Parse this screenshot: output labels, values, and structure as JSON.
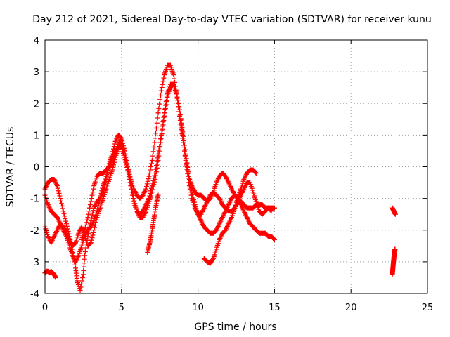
{
  "chart_data": {
    "type": "scatter",
    "title": "Day 212 of 2021, Sidereal Day-to-day VTEC variation (SDTVAR) for receiver kunu",
    "xlabel": "GPS time / hours",
    "ylabel": "SDTVAR / TECUs",
    "xlim": [
      0,
      25
    ],
    "ylim": [
      -4,
      4
    ],
    "xticks": [
      "0",
      "5",
      "10",
      "15",
      "20",
      "25"
    ],
    "yticks": [
      "-4",
      "-3",
      "-2",
      "-1",
      "0",
      "1",
      "2",
      "3",
      "4"
    ],
    "grid": true,
    "marker": "plus",
    "color": "#ff0000",
    "series": [
      {
        "x": [
          0.0,
          0.2,
          0.4,
          0.6,
          0.8,
          1.0,
          1.2,
          1.4,
          1.6,
          1.8,
          2.0,
          2.1,
          2.3,
          2.5,
          2.6,
          2.8,
          3.0,
          3.2,
          3.4,
          3.6,
          3.8,
          4.0,
          4.2,
          4.4,
          4.6,
          4.8,
          5.0,
          5.2,
          5.4,
          5.6,
          5.8,
          6.0,
          6.2,
          6.4,
          6.6,
          6.8,
          7.0,
          7.2,
          7.4,
          7.6,
          7.8,
          8.0,
          8.2,
          8.4,
          8.6,
          8.8,
          9.0,
          9.2,
          9.4,
          9.6,
          9.8,
          10.0,
          10.2,
          10.4,
          10.6,
          10.8,
          11.0,
          11.2,
          11.4,
          11.6,
          11.8,
          12.0,
          12.2,
          12.4,
          12.6,
          12.8,
          13.0,
          13.2,
          13.4,
          13.6,
          13.8,
          14.0,
          14.2,
          14.4,
          14.6,
          14.8,
          15.0
        ],
        "y": [
          -0.7,
          -0.5,
          -0.4,
          -0.4,
          -0.6,
          -1.0,
          -1.4,
          -1.8,
          -2.2,
          -2.7,
          -3.2,
          -3.6,
          -3.9,
          -3.4,
          -2.8,
          -2.2,
          -1.7,
          -1.3,
          -1.1,
          -1.0,
          -0.8,
          -0.4,
          0.1,
          0.4,
          0.8,
          1.0,
          0.9,
          0.5,
          0.0,
          -0.4,
          -0.7,
          -0.9,
          -1.0,
          -0.9,
          -0.7,
          -0.3,
          0.2,
          0.9,
          1.7,
          2.4,
          2.9,
          3.2,
          3.2,
          2.9,
          2.3,
          1.6,
          0.9,
          0.2,
          -0.3,
          -0.6,
          -0.8,
          -0.9,
          -0.9,
          -1.0,
          -1.1,
          -1.0,
          -0.8,
          -0.5,
          -0.3,
          -0.2,
          -0.3,
          -0.5,
          -0.7,
          -0.9,
          -1.0,
          -1.1,
          -1.2,
          -1.3,
          -1.3,
          -1.3,
          -1.2,
          -1.2,
          -1.2,
          -1.3,
          -1.3,
          -1.3,
          -1.3
        ]
      },
      {
        "x": [
          0.0,
          0.2,
          0.4,
          0.6,
          0.8,
          1.0,
          1.2,
          1.4,
          1.6,
          1.8,
          2.0,
          2.2,
          2.4,
          2.6,
          2.8,
          3.0,
          3.2,
          3.4,
          3.6,
          3.8,
          4.0,
          4.2,
          4.4,
          4.6,
          4.8,
          5.0,
          5.2,
          5.4,
          5.6,
          5.8,
          6.0,
          6.2,
          6.4,
          6.6,
          6.8,
          7.0,
          7.2,
          7.4,
          7.6,
          7.8,
          8.0,
          8.2,
          8.4,
          8.6,
          8.8,
          9.0,
          9.2,
          9.4,
          9.6,
          9.8,
          10.0,
          10.2,
          10.4,
          10.6,
          10.8,
          11.0,
          11.2,
          11.4,
          11.6,
          11.8,
          12.0,
          12.2,
          12.4,
          12.6,
          12.8,
          13.0,
          13.2,
          13.4,
          13.6,
          13.8,
          14.0,
          14.2,
          14.4,
          14.6,
          14.8,
          15.0
        ],
        "y": [
          -1.9,
          -2.2,
          -2.4,
          -2.2,
          -2.0,
          -1.8,
          -1.9,
          -2.1,
          -2.3,
          -2.5,
          -2.4,
          -2.1,
          -1.9,
          -2.2,
          -2.5,
          -2.4,
          -2.0,
          -1.6,
          -1.3,
          -1.0,
          -0.7,
          -0.4,
          -0.1,
          0.3,
          0.6,
          0.7,
          0.5,
          0.0,
          -0.5,
          -1.0,
          -1.4,
          -1.6,
          -1.6,
          -1.4,
          -1.1,
          -0.8,
          -0.4,
          0.2,
          0.9,
          1.6,
          2.2,
          2.5,
          2.6,
          2.3,
          1.8,
          1.1,
          0.4,
          -0.3,
          -0.8,
          -1.2,
          -1.5,
          -1.7,
          -1.9,
          -2.0,
          -2.1,
          -2.1,
          -2.0,
          -1.8,
          -1.6,
          -1.4,
          -1.2,
          -1.0,
          -0.9,
          -1.0,
          -1.2,
          -1.4,
          -1.6,
          -1.8,
          -1.9,
          -2.0,
          -2.1,
          -2.1,
          -2.1,
          -2.2,
          -2.2,
          -2.3
        ]
      },
      {
        "x": [
          0.0,
          0.2,
          0.4,
          0.6,
          0.8,
          1.0,
          1.2,
          1.4,
          1.6,
          1.8,
          2.0,
          2.2,
          2.4,
          2.6,
          2.8,
          3.0,
          3.2,
          3.4,
          3.6,
          3.8,
          4.0,
          4.2,
          4.4,
          4.6,
          4.8,
          5.0,
          5.2,
          5.4,
          5.6,
          5.8,
          6.0,
          6.2,
          6.4,
          6.6,
          6.8,
          7.0,
          7.2,
          7.4,
          7.6,
          7.8,
          8.0,
          8.2,
          8.4,
          8.6,
          8.8,
          9.0,
          9.2,
          9.4,
          9.6,
          9.8,
          10.0,
          10.2,
          10.4,
          10.6,
          10.8,
          11.0,
          11.2,
          11.4,
          11.6,
          11.8,
          12.0,
          12.2,
          12.4,
          12.6,
          12.8,
          13.0,
          13.2,
          13.4,
          13.6,
          13.8,
          14.0,
          14.2,
          14.4,
          14.6,
          14.8
        ],
        "y": [
          -0.9,
          -1.2,
          -1.4,
          -1.5,
          -1.6,
          -1.8,
          -2.0,
          -2.2,
          -2.5,
          -2.8,
          -3.0,
          -2.8,
          -2.5,
          -2.2,
          -2.0,
          -1.9,
          -1.7,
          -1.4,
          -1.0,
          -0.6,
          -0.3,
          0.0,
          0.3,
          0.5,
          0.6,
          0.6,
          0.3,
          -0.1,
          -0.6,
          -1.1,
          -1.4,
          -1.5,
          -1.4,
          -1.2,
          -1.0,
          -0.6,
          -0.2,
          0.4,
          1.0,
          1.7,
          2.3,
          2.6,
          2.6,
          2.3,
          1.8,
          1.0,
          0.2,
          -0.5,
          -1.0,
          -1.3,
          -1.5,
          -1.5,
          -1.3,
          -1.1,
          -0.9,
          -0.8,
          -0.9,
          -1.0,
          -1.2,
          -1.3,
          -1.4,
          -1.4,
          -1.3,
          -1.1,
          -0.9,
          -0.7,
          -0.5,
          -0.5,
          -0.8,
          -1.1,
          -1.4,
          -1.5,
          -1.4,
          -1.3,
          -1.4
        ]
      },
      {
        "x": [
          0.0,
          0.1,
          0.2,
          0.3,
          0.4,
          0.5,
          0.6,
          0.7
        ],
        "y": [
          -3.35,
          -3.3,
          -3.3,
          -3.35,
          -3.3,
          -3.35,
          -3.4,
          -3.5
        ]
      },
      {
        "x": [
          2.4,
          2.6,
          2.8,
          3.0,
          3.2,
          3.4,
          3.6,
          3.8,
          4.0,
          4.2,
          4.4,
          4.6,
          4.8,
          5.0
        ],
        "y": [
          -2.3,
          -2.0,
          -1.6,
          -1.1,
          -0.6,
          -0.3,
          -0.2,
          -0.2,
          -0.1,
          0.0,
          0.2,
          0.4,
          0.7,
          0.9
        ]
      },
      {
        "x": [
          6.7,
          6.8,
          6.9,
          7.0,
          7.1,
          7.2,
          7.3,
          7.4
        ],
        "y": [
          -2.7,
          -2.5,
          -2.3,
          -2.0,
          -1.7,
          -1.4,
          -1.1,
          -0.9
        ]
      },
      {
        "x": [
          10.4,
          10.6,
          10.8,
          11.0,
          11.2,
          11.4,
          11.6,
          11.8,
          12.0,
          12.2,
          12.4,
          12.6,
          12.8,
          13.0,
          13.2,
          13.4,
          13.6,
          13.8
        ],
        "y": [
          -2.9,
          -3.0,
          -3.05,
          -2.9,
          -2.6,
          -2.3,
          -2.1,
          -2.0,
          -1.8,
          -1.6,
          -1.3,
          -1.0,
          -0.7,
          -0.4,
          -0.2,
          -0.1,
          -0.1,
          -0.2
        ]
      },
      {
        "x": [
          22.7,
          22.75,
          22.8,
          22.85,
          22.9
        ],
        "y": [
          -1.3,
          -1.35,
          -1.4,
          -1.45,
          -1.5
        ]
      },
      {
        "x": [
          22.7,
          22.72,
          22.74,
          22.76,
          22.78,
          22.8,
          22.82,
          22.84,
          22.86,
          22.88
        ],
        "y": [
          -3.4,
          -3.3,
          -3.2,
          -3.1,
          -3.0,
          -2.9,
          -2.8,
          -2.7,
          -2.65,
          -2.6
        ]
      }
    ]
  }
}
